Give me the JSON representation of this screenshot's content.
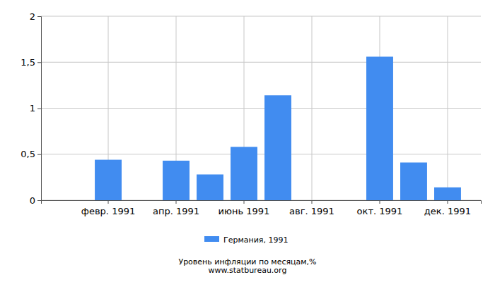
{
  "chart_data": {
    "type": "bar",
    "title": "Уровень инфляции по месяцам,%",
    "subtitle": "www.statbureau.org",
    "categories": [
      null,
      "февр. 1991",
      null,
      "апр. 1991",
      null,
      "июнь 1991",
      null,
      "авг. 1991",
      null,
      "окт. 1991",
      null,
      "дек. 1991"
    ],
    "series": [
      {
        "name": "Германия, 1991",
        "color": "#418cf0",
        "values": [
          0,
          0.44,
          0,
          0.43,
          0.28,
          0.58,
          1.14,
          0,
          0,
          1.56,
          0.41,
          0.14
        ]
      }
    ],
    "ylim": [
      0,
      2
    ],
    "yticks": [
      0,
      {
        "value": 0.5,
        "label": "0,5"
      },
      1,
      {
        "value": 1.5,
        "label": "1,5"
      },
      2
    ],
    "grid": true,
    "legend": "bottom"
  }
}
